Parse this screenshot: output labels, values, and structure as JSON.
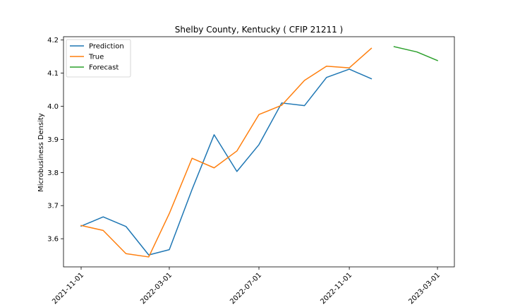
{
  "chart_data": {
    "type": "line",
    "title": "Shelby County, Kentucky ( CFIP 21211 )",
    "xlabel": "",
    "ylabel": "Microbusiness Density",
    "xlim": [
      "2021-10-08",
      "2023-03-24"
    ],
    "ylim": [
      3.515,
      4.21
    ],
    "x_ticks": [
      "2021-11-01",
      "2022-03-01",
      "2022-07-01",
      "2022-11-01",
      "2023-03-01"
    ],
    "y_ticks": [
      3.6,
      3.7,
      3.8,
      3.9,
      4.0,
      4.1,
      4.2
    ],
    "y_tick_labels": [
      "3.6",
      "3.7",
      "3.8",
      "3.9",
      "4.0",
      "4.1",
      "4.2"
    ],
    "legend_position": "top-left",
    "grid": false,
    "series": [
      {
        "name": "Prediction",
        "color": "#1f77b4",
        "x": [
          "2021-11-01",
          "2021-12-01",
          "2022-01-01",
          "2022-02-01",
          "2022-03-01",
          "2022-04-01",
          "2022-05-01",
          "2022-06-01",
          "2022-07-01",
          "2022-08-01",
          "2022-09-01",
          "2022-10-01",
          "2022-11-01",
          "2022-12-01"
        ],
        "y": [
          3.638,
          3.666,
          3.637,
          3.551,
          3.567,
          3.749,
          3.914,
          3.803,
          3.884,
          4.01,
          4.002,
          4.087,
          4.112,
          4.083
        ]
      },
      {
        "name": "True",
        "color": "#ff7f0e",
        "x": [
          "2021-11-01",
          "2021-12-01",
          "2022-01-01",
          "2022-02-01",
          "2022-03-01",
          "2022-04-01",
          "2022-05-01",
          "2022-06-01",
          "2022-07-01",
          "2022-08-01",
          "2022-09-01",
          "2022-10-01",
          "2022-11-01",
          "2022-12-01"
        ],
        "y": [
          3.64,
          3.625,
          3.555,
          3.545,
          3.676,
          3.843,
          3.814,
          3.865,
          3.975,
          4.003,
          4.078,
          4.121,
          4.116,
          4.175
        ]
      },
      {
        "name": "Forecast",
        "color": "#2ca02c",
        "x": [
          "2023-01-01",
          "2023-02-01",
          "2023-03-01"
        ],
        "y": [
          4.18,
          4.164,
          4.138
        ]
      }
    ]
  }
}
